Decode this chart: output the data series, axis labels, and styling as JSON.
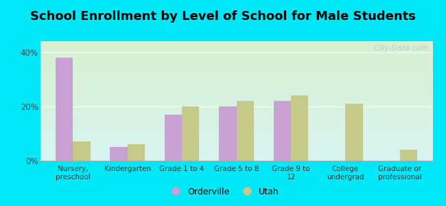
{
  "title": "School Enrollment by Level of School for Male Students",
  "categories": [
    "Nursery,\npreschool",
    "Kindergarten",
    "Grade 1 to 4",
    "Grade 5 to 8",
    "Grade 9 to\n12",
    "College\nundergrad",
    "Graduate or\nprofessional"
  ],
  "orderville": [
    38,
    5,
    17,
    20,
    22,
    0,
    0
  ],
  "utah": [
    7,
    6,
    20,
    22,
    24,
    21,
    4
  ],
  "orderville_color": "#c8a0d4",
  "utah_color": "#c5c98a",
  "background_outer": "#00e8f8",
  "background_inner_gradient_top": "#d8f0d0",
  "background_inner_gradient_bottom": "#d8f4f0",
  "ylabel_ticks": [
    "0%",
    "20%",
    "40%"
  ],
  "yticks": [
    0,
    20,
    40
  ],
  "ylim": [
    0,
    44
  ],
  "title_fontsize": 13,
  "legend_labels": [
    "Orderville",
    "Utah"
  ],
  "watermark": "  City-Data.com",
  "tick_label_fontsize": 7.5,
  "legend_fontsize": 9
}
